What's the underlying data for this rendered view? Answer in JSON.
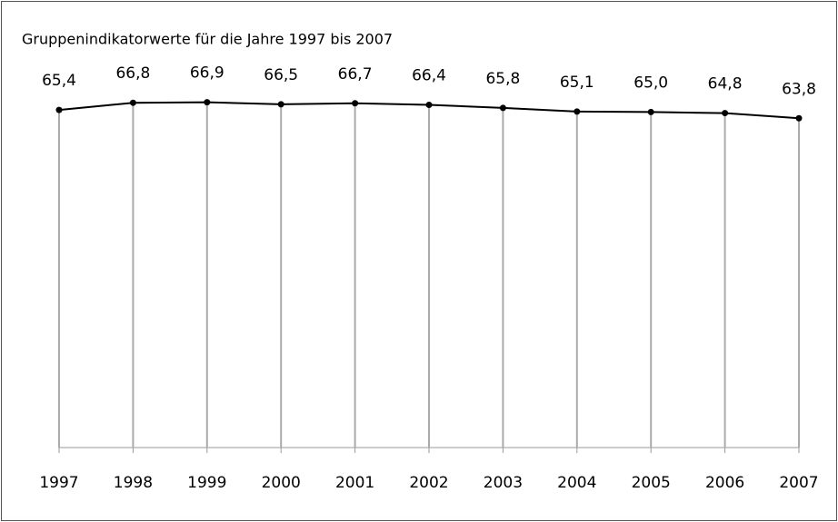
{
  "chart_data": {
    "type": "line",
    "title": "Gruppenindikatorwerte für die Jahre 1997 bis 2007",
    "categories": [
      "1997",
      "1998",
      "1999",
      "2000",
      "2001",
      "2002",
      "2003",
      "2004",
      "2005",
      "2006",
      "2007"
    ],
    "values": [
      65.4,
      66.8,
      66.9,
      66.5,
      66.7,
      66.4,
      65.8,
      65.1,
      65.0,
      64.8,
      63.8
    ],
    "value_labels": [
      "65,4",
      "66,8",
      "66,9",
      "66,5",
      "66,7",
      "66,4",
      "65,8",
      "65,1",
      "65,0",
      "64,8",
      "63,8"
    ],
    "color": "#000000",
    "ylim": [
      0,
      70
    ]
  }
}
